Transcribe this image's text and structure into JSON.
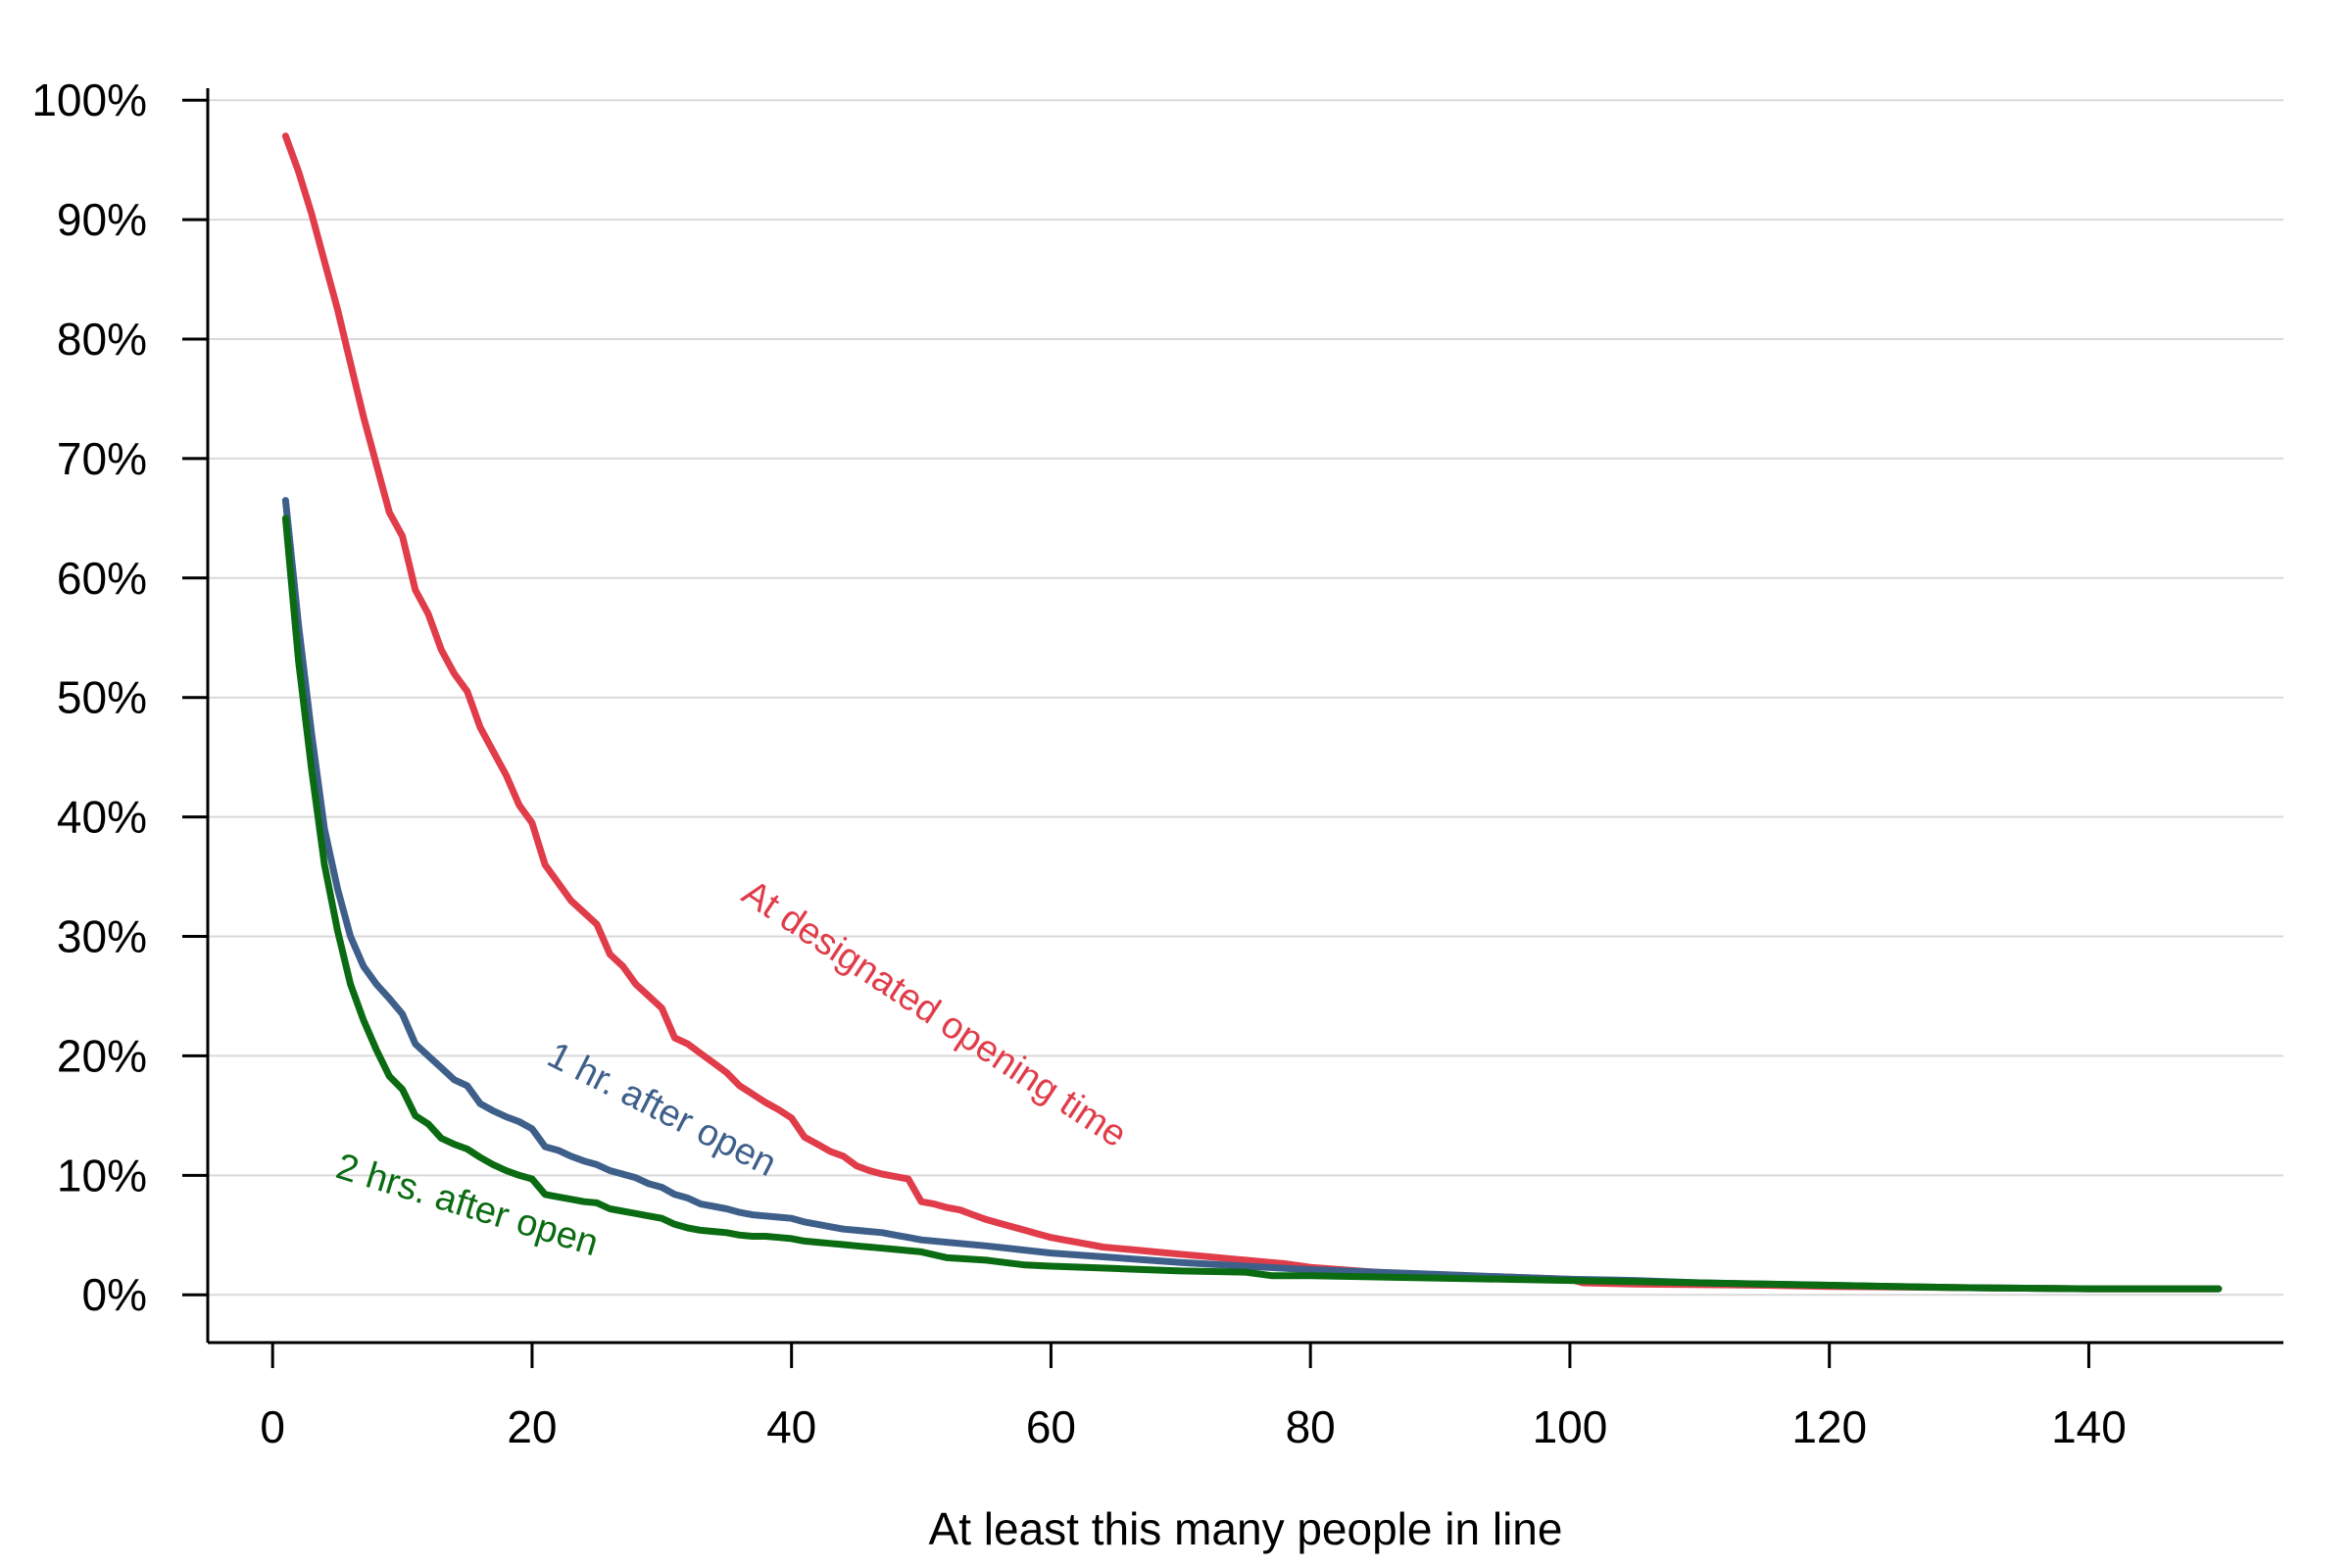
{
  "chart_data": {
    "type": "line",
    "title": "",
    "xlabel": "At least this many people in line",
    "ylabel": "",
    "xlim": [
      -5,
      155
    ],
    "ylim": [
      -4,
      101
    ],
    "x_ticks": [
      0,
      20,
      40,
      60,
      80,
      100,
      120,
      140
    ],
    "x_tick_labels": [
      "0",
      "20",
      "40",
      "60",
      "80",
      "100",
      "120",
      "140"
    ],
    "y_ticks": [
      0,
      10,
      20,
      30,
      40,
      50,
      60,
      70,
      80,
      90,
      100
    ],
    "y_tick_labels": [
      "0%",
      "10%",
      "20%",
      "30%",
      "40%",
      "50%",
      "60%",
      "70%",
      "80%",
      "90%",
      "100%"
    ],
    "grid": "horizontal",
    "series": [
      {
        "name": "At designated opening time",
        "color": "#e03c4a",
        "x": [
          1,
          2,
          3,
          4,
          5,
          6,
          7,
          8,
          9,
          10,
          11,
          12,
          13,
          14,
          15,
          16,
          17,
          18,
          19,
          20,
          21,
          22,
          23,
          24,
          25,
          26,
          27,
          28,
          29,
          30,
          31,
          32,
          33,
          34,
          35,
          36,
          37,
          38,
          39,
          40,
          41,
          42,
          43,
          44,
          45,
          46,
          47,
          48,
          49,
          50,
          51,
          52,
          53,
          54,
          55,
          56,
          57,
          58,
          59,
          60,
          61,
          62,
          63,
          64,
          65,
          66,
          67,
          68,
          69,
          70,
          72,
          74,
          76,
          78,
          80,
          85,
          90,
          95,
          100,
          101,
          105,
          110,
          115,
          120,
          125,
          130,
          135,
          140,
          145,
          150
        ],
        "values": [
          97,
          94,
          90.5,
          86.5,
          82.5,
          78,
          73.5,
          69.5,
          65.5,
          63.5,
          59,
          57,
          54,
          52,
          50.5,
          47.5,
          45.5,
          43.5,
          41,
          39.5,
          36,
          34.5,
          33,
          32,
          31,
          28.5,
          27.5,
          26,
          25,
          24,
          21.5,
          21,
          20.2,
          19.4,
          18.6,
          17.5,
          16.8,
          16.1,
          15.5,
          14.8,
          13.2,
          12.6,
          12,
          11.6,
          10.8,
          10.4,
          10.1,
          9.9,
          9.7,
          7.8,
          7.6,
          7.3,
          7.1,
          6.7,
          6.3,
          6,
          5.7,
          5.4,
          5.1,
          4.8,
          4.6,
          4.4,
          4.2,
          4,
          3.9,
          3.8,
          3.7,
          3.6,
          3.5,
          3.4,
          3.2,
          3,
          2.8,
          2.6,
          2.3,
          1.9,
          1.6,
          1.5,
          1.3,
          1,
          0.9,
          0.85,
          0.8,
          0.7,
          0.65,
          0.6,
          0.55,
          0.5,
          0.5,
          0.5
        ]
      },
      {
        "name": "1 hr. after open",
        "color": "#3e5f8a",
        "x": [
          1,
          2,
          3,
          4,
          5,
          6,
          7,
          8,
          9,
          10,
          11,
          12,
          13,
          14,
          15,
          16,
          17,
          18,
          19,
          20,
          21,
          22,
          23,
          24,
          25,
          26,
          27,
          28,
          29,
          30,
          31,
          32,
          33,
          34,
          35,
          36,
          37,
          38,
          39,
          40,
          41,
          42,
          43,
          44,
          45,
          46,
          47,
          48,
          49,
          50,
          55,
          60,
          65,
          70,
          75,
          80,
          85,
          90,
          95,
          100,
          105,
          110,
          115,
          120,
          125,
          130,
          135,
          140,
          145,
          150
        ],
        "values": [
          66.5,
          56,
          47,
          39,
          34,
          30,
          27.5,
          26,
          24.8,
          23.5,
          21,
          20,
          19,
          18,
          17.5,
          16,
          15.4,
          14.9,
          14.5,
          13.9,
          12.4,
          12.1,
          11.6,
          11.2,
          10.9,
          10.4,
          10.1,
          9.8,
          9.3,
          9,
          8.4,
          8.1,
          7.6,
          7.4,
          7.2,
          6.9,
          6.7,
          6.6,
          6.5,
          6.4,
          6.1,
          5.9,
          5.7,
          5.5,
          5.4,
          5.3,
          5.2,
          5,
          4.8,
          4.6,
          4.1,
          3.5,
          3.1,
          2.7,
          2.4,
          2.1,
          1.9,
          1.7,
          1.5,
          1.3,
          1.2,
          1,
          0.9,
          0.8,
          0.7,
          0.6,
          0.55,
          0.5,
          0.5,
          0.5
        ]
      },
      {
        "name": "2 hrs. after open",
        "color": "#0a6b12",
        "x": [
          1,
          2,
          3,
          4,
          5,
          6,
          7,
          8,
          9,
          10,
          11,
          12,
          13,
          14,
          15,
          16,
          17,
          18,
          19,
          20,
          21,
          22,
          23,
          24,
          25,
          26,
          27,
          28,
          29,
          30,
          31,
          32,
          33,
          34,
          35,
          36,
          37,
          38,
          39,
          40,
          41,
          42,
          43,
          44,
          45,
          46,
          47,
          48,
          49,
          50,
          52,
          55,
          58,
          60,
          65,
          70,
          75,
          77,
          80,
          85,
          90,
          95,
          100,
          105,
          110,
          115,
          120,
          125,
          130,
          135,
          140,
          145,
          150
        ],
        "values": [
          65,
          53,
          44,
          36,
          30.5,
          26,
          23,
          20.5,
          18.3,
          17.2,
          15,
          14.3,
          13.1,
          12.6,
          12.2,
          11.5,
          10.9,
          10.4,
          10,
          9.7,
          8.4,
          8.2,
          8,
          7.8,
          7.7,
          7.2,
          7,
          6.8,
          6.6,
          6.4,
          5.9,
          5.6,
          5.4,
          5.3,
          5.2,
          5,
          4.9,
          4.9,
          4.8,
          4.7,
          4.5,
          4.4,
          4.3,
          4.2,
          4.1,
          4,
          3.9,
          3.8,
          3.7,
          3.6,
          3.1,
          2.9,
          2.5,
          2.4,
          2.2,
          2,
          1.9,
          1.6,
          1.6,
          1.5,
          1.4,
          1.3,
          1.2,
          1.1,
          1,
          0.9,
          0.8,
          0.7,
          0.6,
          0.55,
          0.5,
          0.5,
          0.5
        ]
      }
    ],
    "annotations": [
      {
        "text": "At designated opening time",
        "series": 0,
        "x": 51,
        "y": 23.5,
        "angle": 33.5
      },
      {
        "text": "1 hr. after open",
        "series": 1,
        "x": 30,
        "y": 15.5,
        "angle": 27
      },
      {
        "text": "2 hrs. after open",
        "series": 2,
        "x": 15,
        "y": 7.5,
        "angle": 17
      }
    ]
  }
}
